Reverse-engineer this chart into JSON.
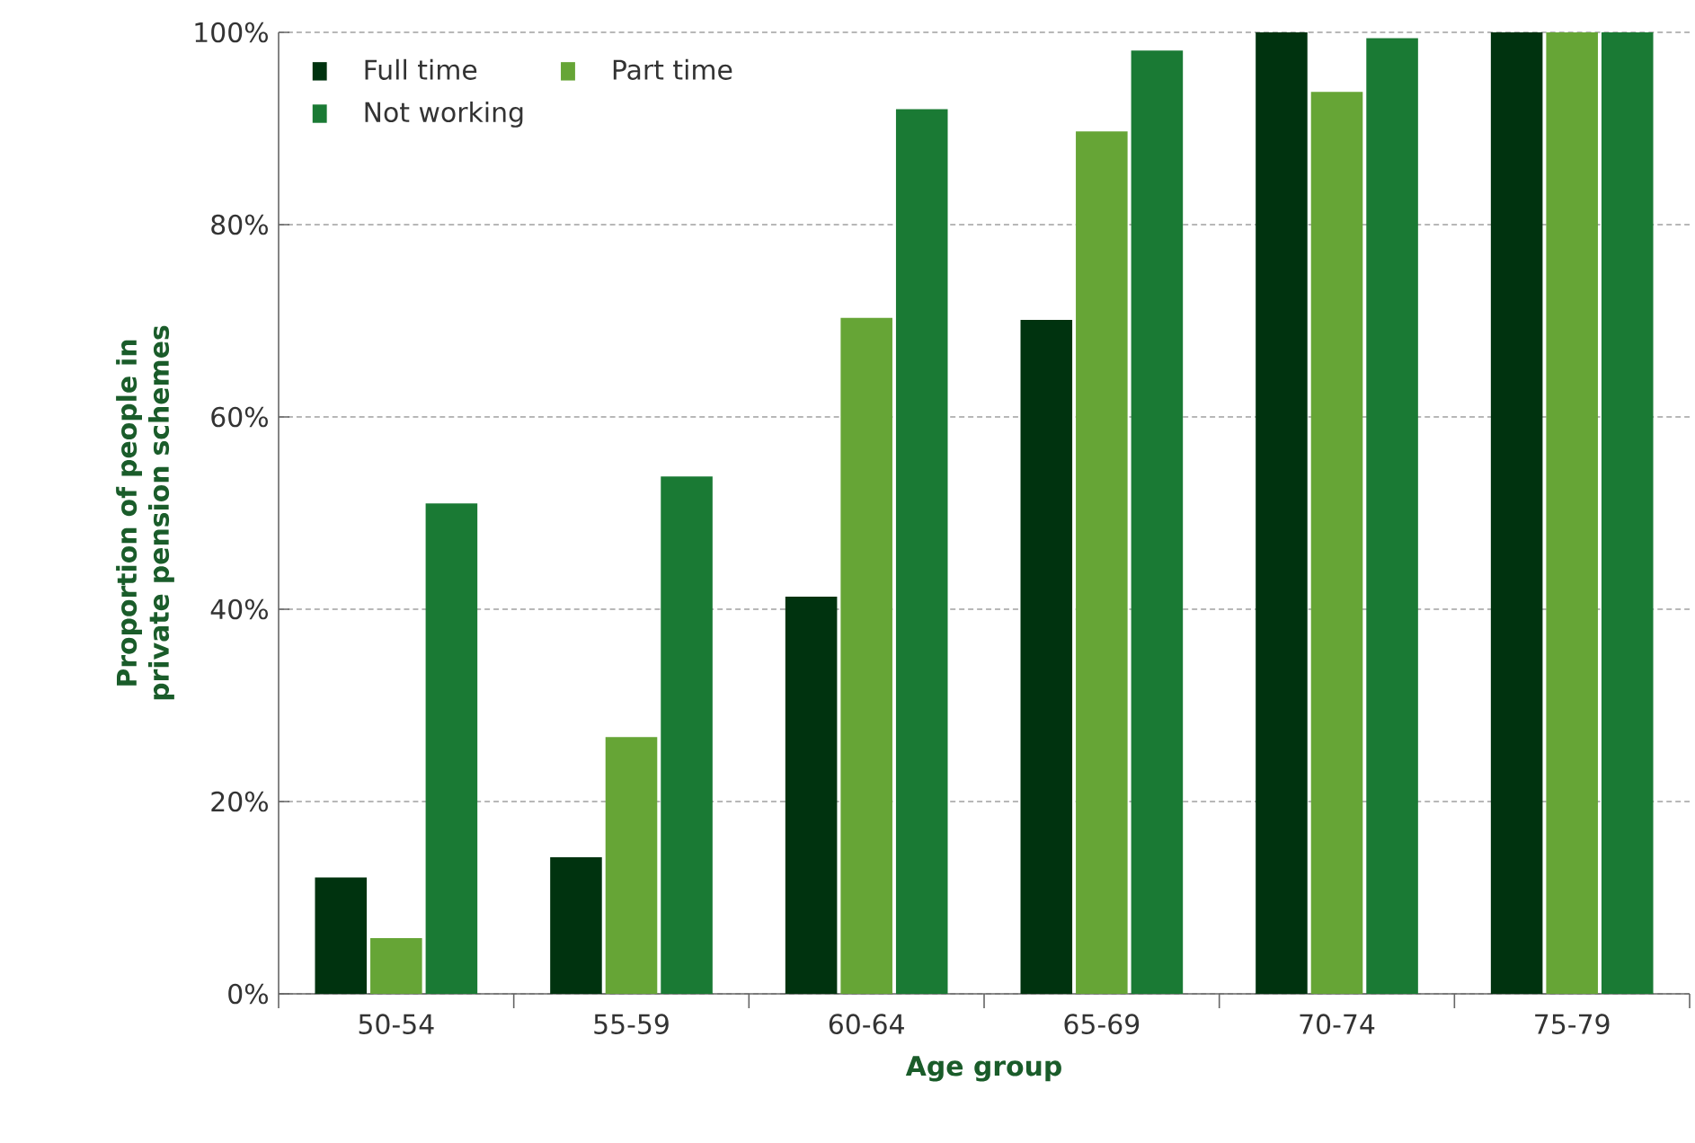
{
  "chart_data": {
    "type": "bar",
    "xlabel": "Age group",
    "ylabel": "Proportion of people in private pension schemes",
    "categories": [
      "50-54",
      "55-59",
      "60-64",
      "65-69",
      "70-74",
      "75-79"
    ],
    "series": [
      {
        "name": "Full time",
        "color": "#00330f",
        "values": [
          12.1,
          14.2,
          41.3,
          70.1,
          100,
          100
        ]
      },
      {
        "name": "Part time",
        "color": "#66a536",
        "values": [
          5.8,
          26.7,
          70.3,
          89.7,
          93.8,
          100
        ]
      },
      {
        "name": "Not working",
        "color": "#1a7a34",
        "values": [
          51.0,
          53.8,
          92.0,
          98.1,
          99.4,
          100
        ]
      }
    ],
    "ylim": [
      0,
      100
    ],
    "yticks": [
      {
        "value": 0,
        "label": "0%"
      },
      {
        "value": 20,
        "label": "20%"
      },
      {
        "value": 40,
        "label": "40%"
      },
      {
        "value": 60,
        "label": "60%"
      },
      {
        "value": 80,
        "label": "80%"
      },
      {
        "value": 100,
        "label": "100%"
      }
    ],
    "grid": "y",
    "legend": "top left"
  }
}
